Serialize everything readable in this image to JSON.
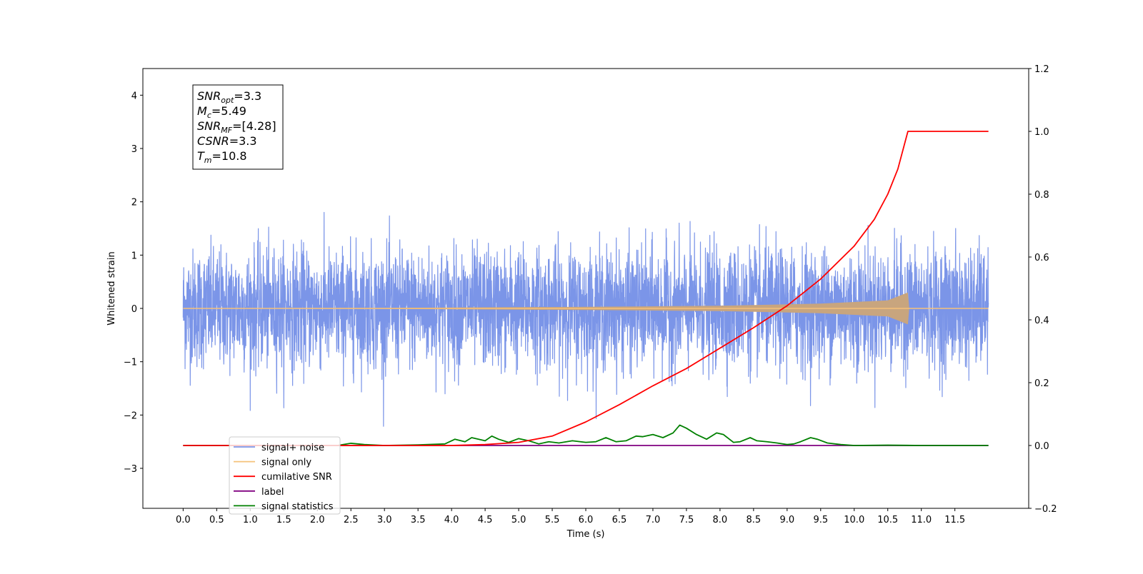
{
  "chart_data": {
    "type": "line",
    "xlabel": "Time (s)",
    "ylabel": "Whitened strain",
    "xlim": [
      -0.6,
      12.6
    ],
    "ylim": [
      -3.75,
      4.5
    ],
    "y2lim": [
      -0.2,
      1.2
    ],
    "x_ticks": [
      "0.0",
      "0.5",
      "1.0",
      "1.5",
      "2.0",
      "2.5",
      "3.0",
      "3.5",
      "4.0",
      "4.5",
      "5.0",
      "5.5",
      "6.0",
      "6.5",
      "7.0",
      "7.5",
      "8.0",
      "8.5",
      "9.0",
      "9.5",
      "10.0",
      "10.5",
      "11.0",
      "11.5"
    ],
    "y_ticks": [
      "−3",
      "−2",
      "−1",
      "0",
      "1",
      "2",
      "3",
      "4"
    ],
    "y2_ticks": [
      "−0.2",
      "0.0",
      "0.2",
      "0.4",
      "0.6",
      "0.8",
      "1.0",
      "1.2"
    ],
    "annotation": [
      {
        "name": "SNR",
        "sub": "opt",
        "value": "=3.3"
      },
      {
        "name": "M",
        "sub": "c",
        "value": "=5.49"
      },
      {
        "name": "SNR",
        "sub": "MF",
        "value": "=[4.28]"
      },
      {
        "name": "CSNR",
        "sub": "",
        "value": "=3.3"
      },
      {
        "name": "T",
        "sub": "m",
        "value": "=10.8"
      }
    ],
    "series": [
      {
        "name": "signal+ noise",
        "color": "#7b95e8",
        "axis": "left",
        "description_values": {
          "t_start": 0.0,
          "t_end": 12.0,
          "std": 0.55
        }
      },
      {
        "name": "signal only",
        "color": "#f5c27a",
        "axis": "left",
        "envelope": [
          [
            0.0,
            0.005
          ],
          [
            3.0,
            0.01
          ],
          [
            6.0,
            0.03
          ],
          [
            8.0,
            0.05
          ],
          [
            9.5,
            0.09
          ],
          [
            10.5,
            0.15
          ],
          [
            10.8,
            0.3
          ],
          [
            10.82,
            0.0
          ],
          [
            12.0,
            0.0
          ]
        ]
      },
      {
        "name": "cumilative SNR",
        "color": "#ff0000",
        "axis": "right",
        "x": [
          0.0,
          4.0,
          4.5,
          5.0,
          5.5,
          6.0,
          6.5,
          7.0,
          7.5,
          8.0,
          8.5,
          9.0,
          9.5,
          10.0,
          10.3,
          10.5,
          10.65,
          10.8,
          12.0
        ],
        "values": [
          0.0,
          0.0,
          0.003,
          0.01,
          0.03,
          0.075,
          0.13,
          0.19,
          0.245,
          0.31,
          0.375,
          0.445,
          0.53,
          0.635,
          0.72,
          0.8,
          0.88,
          1.0,
          1.0
        ]
      },
      {
        "name": "label",
        "color": "#800080",
        "axis": "right",
        "x": [
          0.0,
          12.0
        ],
        "values": [
          0.0,
          0.0
        ]
      },
      {
        "name": "signal statistics",
        "color": "#008000",
        "axis": "right",
        "x": [
          0.0,
          2.3,
          2.5,
          2.7,
          3.0,
          3.5,
          3.9,
          4.05,
          4.2,
          4.3,
          4.5,
          4.6,
          4.7,
          4.85,
          5.0,
          5.15,
          5.3,
          5.45,
          5.6,
          5.8,
          6.0,
          6.15,
          6.3,
          6.45,
          6.6,
          6.75,
          6.85,
          7.0,
          7.15,
          7.3,
          7.4,
          7.5,
          7.65,
          7.8,
          7.95,
          8.05,
          8.2,
          8.3,
          8.45,
          8.55,
          8.7,
          8.85,
          9.0,
          9.1,
          9.2,
          9.35,
          9.45,
          9.6,
          9.8,
          10.0,
          10.5,
          11.0,
          12.0
        ],
        "values": [
          0.0,
          0.0,
          0.007,
          0.003,
          0.0,
          0.002,
          0.005,
          0.02,
          0.012,
          0.025,
          0.015,
          0.03,
          0.02,
          0.01,
          0.022,
          0.015,
          0.005,
          0.012,
          0.008,
          0.015,
          0.01,
          0.012,
          0.025,
          0.012,
          0.015,
          0.03,
          0.028,
          0.035,
          0.025,
          0.04,
          0.065,
          0.055,
          0.035,
          0.02,
          0.04,
          0.035,
          0.01,
          0.012,
          0.025,
          0.015,
          0.012,
          0.008,
          0.003,
          0.005,
          0.012,
          0.025,
          0.02,
          0.008,
          0.003,
          0.0,
          0.001,
          0.0,
          0.0
        ]
      }
    ],
    "legend": {
      "placement": "lower-left",
      "items": [
        {
          "label": "signal+ noise",
          "color": "#7b95e8"
        },
        {
          "label": "signal only",
          "color": "#f5c27a"
        },
        {
          "label": "cumilative SNR",
          "color": "#ff0000"
        },
        {
          "label": "label",
          "color": "#800080"
        },
        {
          "label": "signal statistics",
          "color": "#008000"
        }
      ]
    }
  }
}
